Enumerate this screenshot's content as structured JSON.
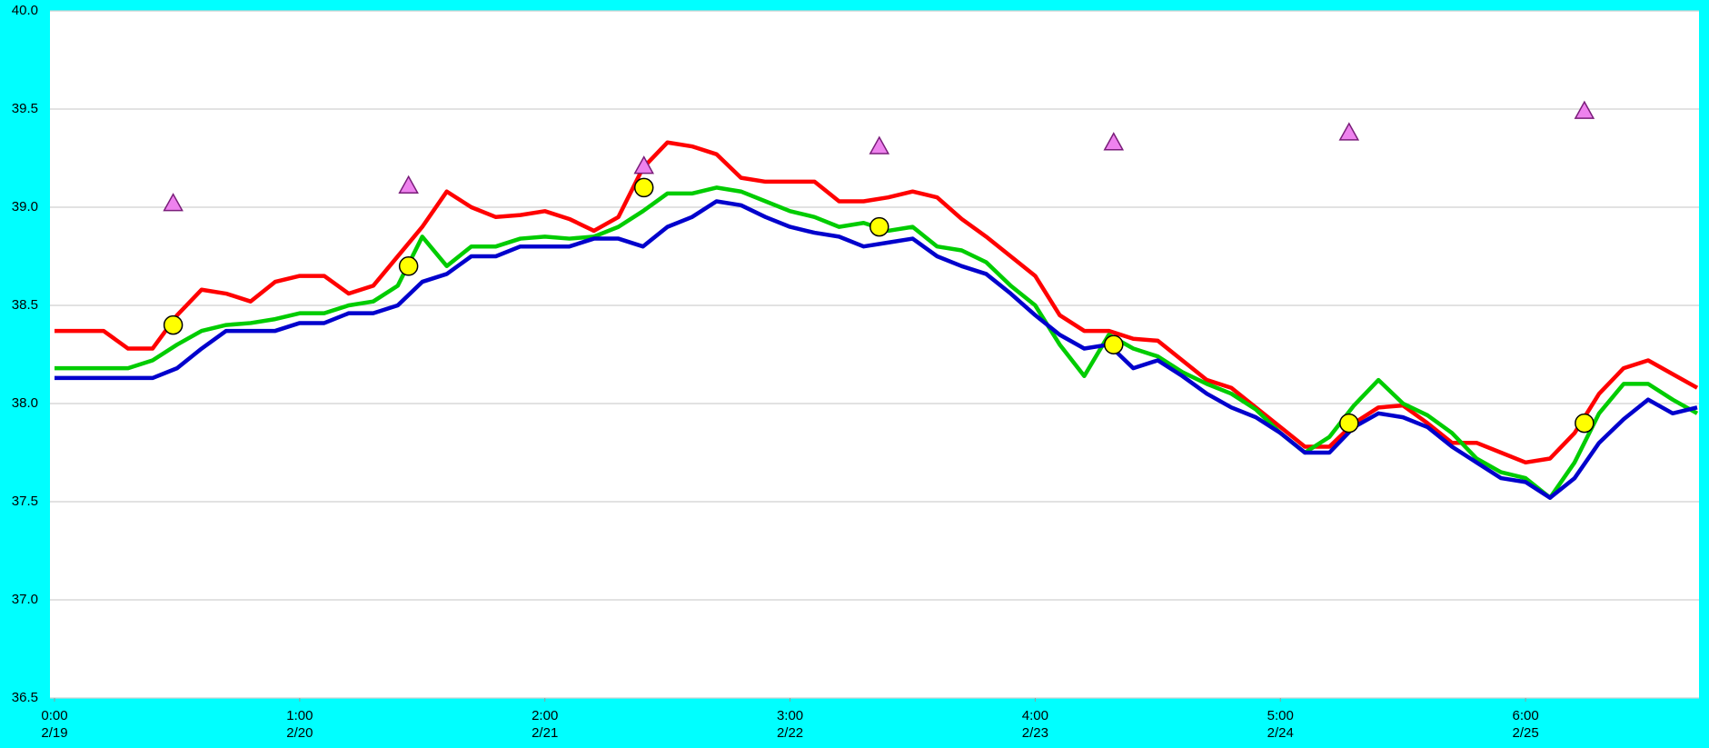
{
  "chart_data": {
    "type": "line",
    "x": [
      0,
      0.1,
      0.2,
      0.3,
      0.4,
      0.5,
      0.6,
      0.7,
      0.8,
      0.9,
      1,
      1.1,
      1.2,
      1.3,
      1.4,
      1.5,
      1.6,
      1.7,
      1.8,
      1.9,
      2,
      2.1,
      2.2,
      2.3,
      2.4,
      2.5,
      2.6,
      2.7,
      2.8,
      2.9,
      3,
      3.1,
      3.2,
      3.3,
      3.4,
      3.5,
      3.6,
      3.7,
      3.8,
      3.9,
      4,
      4.1,
      4.2,
      4.3,
      4.4,
      4.5,
      4.6,
      4.7,
      4.8,
      4.9,
      5,
      5.1,
      5.2,
      5.3,
      5.4,
      5.5,
      5.6,
      5.7,
      5.8,
      5.9,
      6,
      6.1,
      6.2,
      6.3,
      6.4,
      6.5,
      6.6,
      6.7
    ],
    "series": [
      {
        "color": "#ff0000",
        "values": [
          38.37,
          38.37,
          38.37,
          38.28,
          38.28,
          38.45,
          38.58,
          38.56,
          38.52,
          38.62,
          38.65,
          38.65,
          38.56,
          38.6,
          38.75,
          38.9,
          39.08,
          39.0,
          38.95,
          38.96,
          38.98,
          38.94,
          38.88,
          38.95,
          39.2,
          39.33,
          39.31,
          39.27,
          39.15,
          39.13,
          39.13,
          39.13,
          39.03,
          39.03,
          39.05,
          39.08,
          39.05,
          38.94,
          38.85,
          38.75,
          38.65,
          38.45,
          38.37,
          38.37,
          38.33,
          38.32,
          38.22,
          38.12,
          38.08,
          37.98,
          37.88,
          37.78,
          37.78,
          37.9,
          37.98,
          37.99,
          37.9,
          37.8,
          37.8,
          37.75,
          37.7,
          37.72,
          37.85,
          38.05,
          38.18,
          38.22,
          38.15,
          38.08
        ]
      },
      {
        "color": "#00cc00",
        "values": [
          38.18,
          38.18,
          38.18,
          38.18,
          38.22,
          38.3,
          38.37,
          38.4,
          38.41,
          38.43,
          38.46,
          38.46,
          38.5,
          38.52,
          38.6,
          38.85,
          38.7,
          38.8,
          38.8,
          38.84,
          38.85,
          38.84,
          38.85,
          38.9,
          38.98,
          39.07,
          39.07,
          39.1,
          39.08,
          39.03,
          38.98,
          38.95,
          38.9,
          38.92,
          38.88,
          38.9,
          38.8,
          38.78,
          38.72,
          38.6,
          38.5,
          38.3,
          38.14,
          38.35,
          38.28,
          38.24,
          38.16,
          38.1,
          38.05,
          37.97,
          37.85,
          37.75,
          37.83,
          37.99,
          38.12,
          38.0,
          37.94,
          37.85,
          37.72,
          37.65,
          37.62,
          37.52,
          37.7,
          37.95,
          38.1,
          38.1,
          38.02,
          37.95
        ]
      },
      {
        "color": "#0000cc",
        "values": [
          38.13,
          38.13,
          38.13,
          38.13,
          38.13,
          38.18,
          38.28,
          38.37,
          38.37,
          38.37,
          38.41,
          38.41,
          38.46,
          38.46,
          38.5,
          38.62,
          38.66,
          38.75,
          38.75,
          38.8,
          38.8,
          38.8,
          38.84,
          38.84,
          38.8,
          38.9,
          38.95,
          39.03,
          39.01,
          38.95,
          38.9,
          38.87,
          38.85,
          38.8,
          38.82,
          38.84,
          38.75,
          38.7,
          38.66,
          38.56,
          38.45,
          38.35,
          38.28,
          38.3,
          38.18,
          38.22,
          38.14,
          38.05,
          37.98,
          37.93,
          37.85,
          37.75,
          37.75,
          37.88,
          37.95,
          37.93,
          37.88,
          37.78,
          37.7,
          37.62,
          37.6,
          37.52,
          37.62,
          37.8,
          37.92,
          38.02,
          37.95,
          37.98
        ]
      },
      {
        "color": "#ffff00",
        "marker": "circle",
        "x": [
          0.484,
          1.444,
          2.404,
          3.364,
          4.32,
          5.28,
          6.24
        ],
        "values": [
          38.4,
          38.7,
          39.1,
          38.9,
          38.3,
          37.9,
          37.9
        ]
      },
      {
        "color": "#ee82ee",
        "marker": "triangle",
        "x": [
          0.484,
          1.444,
          2.404,
          3.364,
          4.32,
          5.28,
          6.24
        ],
        "values": [
          39.02,
          39.11,
          39.21,
          39.31,
          39.33,
          39.38,
          39.49
        ]
      }
    ],
    "xlim": [
      0,
      6.7
    ],
    "xticks": [
      {
        "value": 0,
        "label": "0:00"
      },
      {
        "value": 1,
        "label": "1:00"
      },
      {
        "value": 2,
        "label": "2:00"
      },
      {
        "value": 3,
        "label": "3:00"
      },
      {
        "value": 4,
        "label": "4:00"
      },
      {
        "value": 5,
        "label": "5:00"
      },
      {
        "value": 6,
        "label": "6:00"
      }
    ],
    "xtick_dates": [
      "2/19",
      "2/20",
      "2/21",
      "2/22",
      "2/23",
      "2/24",
      "2/25"
    ],
    "ylim": [
      36.5,
      40
    ],
    "yticks": [
      36.5,
      {
        "value": 37,
        "label": "37.0"
      },
      37.5,
      {
        "value": 38,
        "label": "38.0"
      },
      38.5,
      {
        "value": 39,
        "label": "39.0"
      },
      39.5,
      {
        "value": 40,
        "label": "40.0"
      }
    ],
    "grid": true
  }
}
